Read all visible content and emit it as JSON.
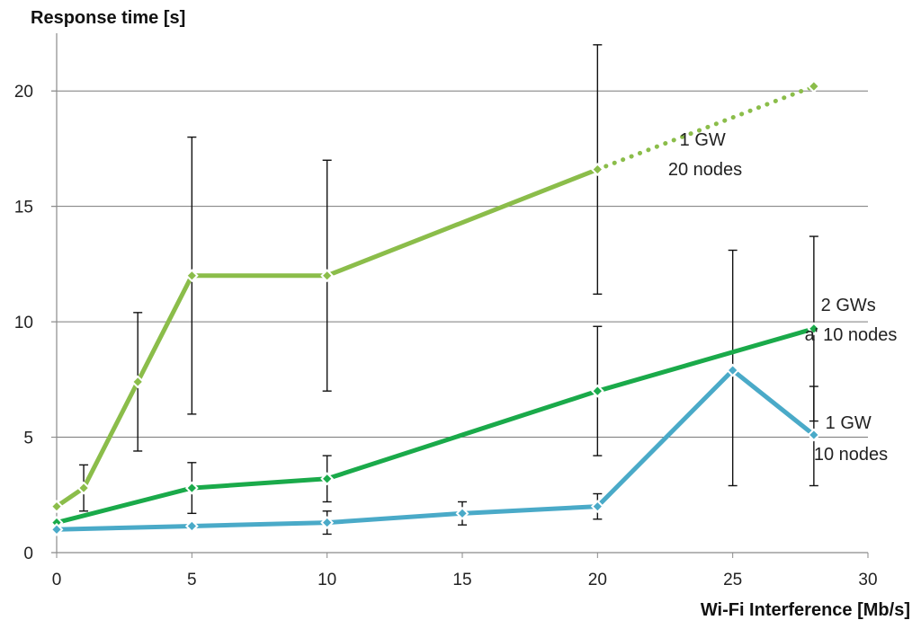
{
  "chart_data": {
    "type": "line",
    "ylabel": "Response time [s]",
    "xlabel": "Wi-Fi Interference [Mb/s]",
    "xlim": [
      0,
      30
    ],
    "ylim": [
      0,
      22.5
    ],
    "xticks": [
      0,
      5,
      10,
      15,
      20,
      25,
      30
    ],
    "yticks": [
      0,
      5,
      10,
      15,
      20
    ],
    "grid": "horizontal",
    "series": [
      {
        "color": "#8bbd4a",
        "points": [
          {
            "x": 0,
            "y": 2.0
          },
          {
            "x": 1,
            "y": 2.8,
            "err_low": 1.8,
            "err_high": 3.8
          },
          {
            "x": 3,
            "y": 7.4,
            "err_low": 4.4,
            "err_high": 10.4
          },
          {
            "x": 5,
            "y": 12.0,
            "err_low": 6.0,
            "err_high": 18.0
          },
          {
            "x": 10,
            "y": 12.0,
            "err_low": 7.0,
            "err_high": 17.0
          },
          {
            "x": 20,
            "y": 16.6,
            "err_low": 11.2,
            "err_high": 22.0
          },
          {
            "x": 28,
            "y": 20.2
          }
        ],
        "dotted_from_x": 20
      },
      {
        "color": "#1aaa4a",
        "points": [
          {
            "x": 0,
            "y": 1.3
          },
          {
            "x": 5,
            "y": 2.8,
            "err_low": 1.7,
            "err_high": 3.9
          },
          {
            "x": 10,
            "y": 3.2,
            "err_low": 2.2,
            "err_high": 4.2
          },
          {
            "x": 20,
            "y": 7.0,
            "err_low": 4.2,
            "err_high": 9.8
          },
          {
            "x": 28,
            "y": 9.7,
            "err_low": 5.7,
            "err_high": 13.7
          }
        ]
      },
      {
        "color": "#4aaac8",
        "points": [
          {
            "x": 0,
            "y": 1.0
          },
          {
            "x": 5,
            "y": 1.15
          },
          {
            "x": 10,
            "y": 1.3,
            "err_low": 0.8,
            "err_high": 1.8
          },
          {
            "x": 15,
            "y": 1.7,
            "err_low": 1.2,
            "err_high": 2.2
          },
          {
            "x": 20,
            "y": 2.0,
            "err_low": 1.45,
            "err_high": 2.55
          },
          {
            "x": 25,
            "y": 7.9,
            "err_low": 2.9,
            "err_high": 13.1
          },
          {
            "x": 28,
            "y": 5.1,
            "err_low": 2.9,
            "err_high": 7.2
          }
        ]
      }
    ],
    "annotations": [
      {
        "lines": [
          "1 GW",
          "20 nodes"
        ]
      },
      {
        "lines": [
          "2 GWs",
          "a' 10 nodes"
        ]
      },
      {
        "lines": [
          "1 GW",
          "10 nodes"
        ]
      }
    ]
  }
}
